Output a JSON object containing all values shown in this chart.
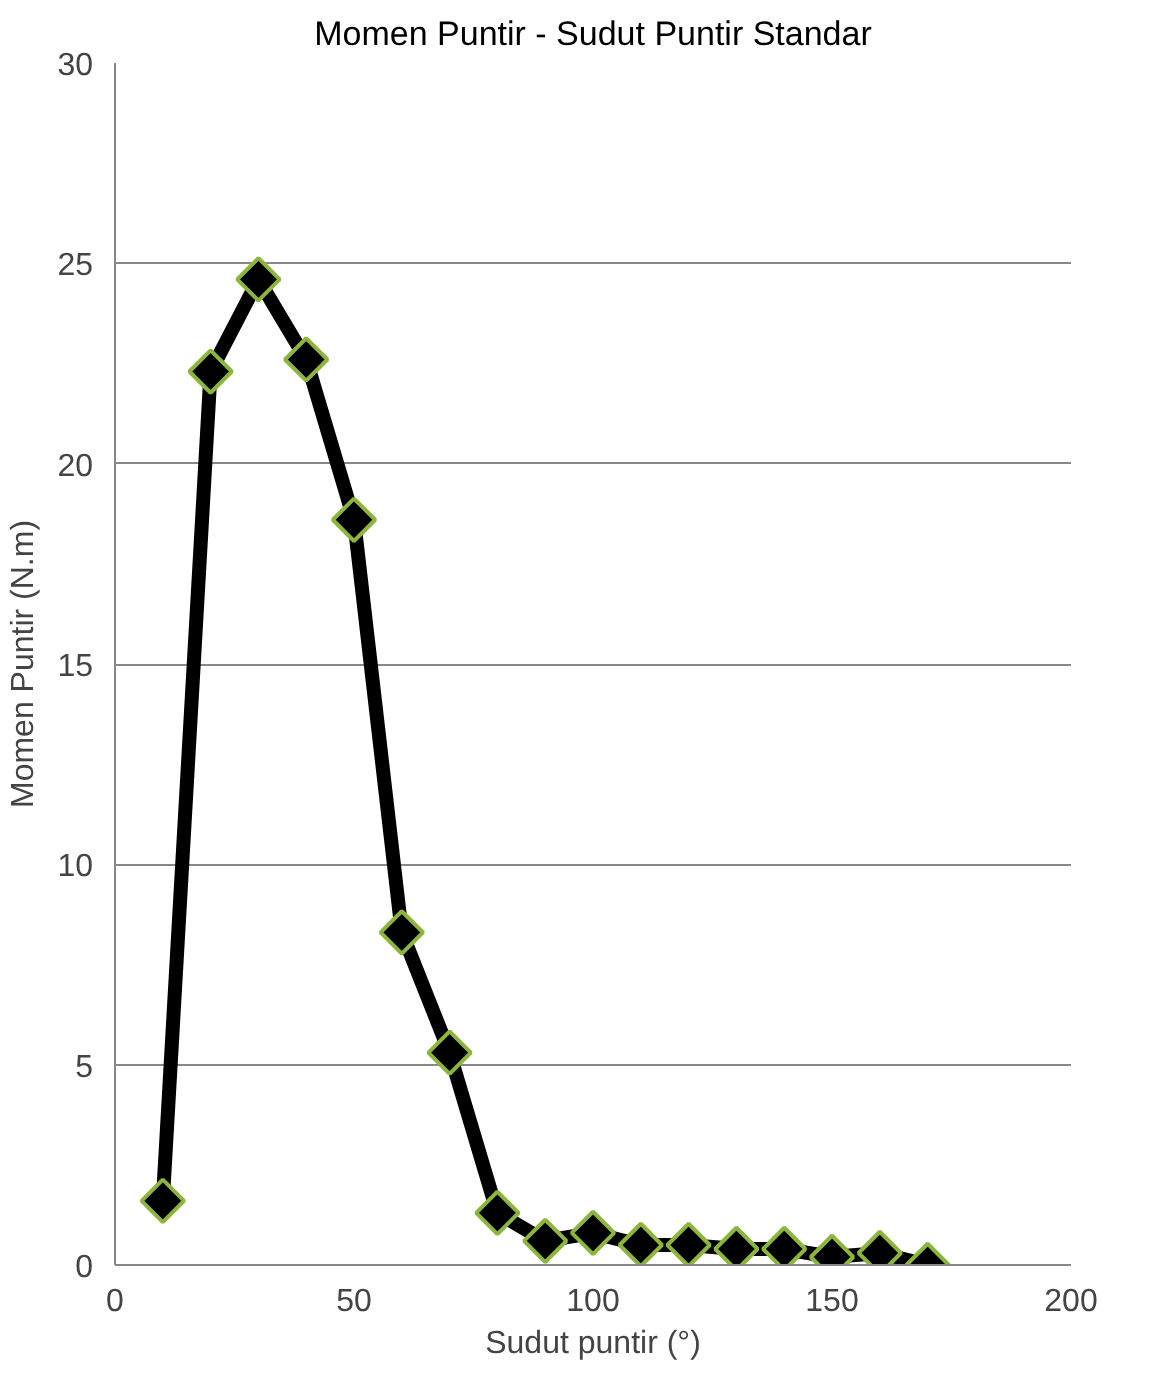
{
  "chart_data": {
    "type": "line",
    "title": "Momen Puntir - Sudut Puntir Standar",
    "xlabel": "Sudut puntir (°)",
    "ylabel": "Momen Puntir (N.m)",
    "x": [
      10,
      20,
      30,
      40,
      50,
      60,
      70,
      80,
      90,
      100,
      110,
      120,
      130,
      140,
      150,
      160,
      170
    ],
    "series": [
      {
        "color": "#000000",
        "values": [
          1.6,
          22.3,
          24.6,
          22.6,
          18.6,
          8.3,
          5.3,
          1.3,
          0.6,
          0.8,
          0.5,
          0.5,
          0.4,
          0.4,
          0.2,
          0.3,
          0.0
        ]
      }
    ],
    "xlim": [
      0,
      200
    ],
    "xticks": [
      0,
      50,
      100,
      150,
      200
    ],
    "ylim": [
      0,
      30
    ],
    "yticks": [
      0,
      5,
      10,
      15,
      20,
      25,
      30
    ],
    "grid": "y",
    "marker": "diamond",
    "line_style": "solid"
  }
}
